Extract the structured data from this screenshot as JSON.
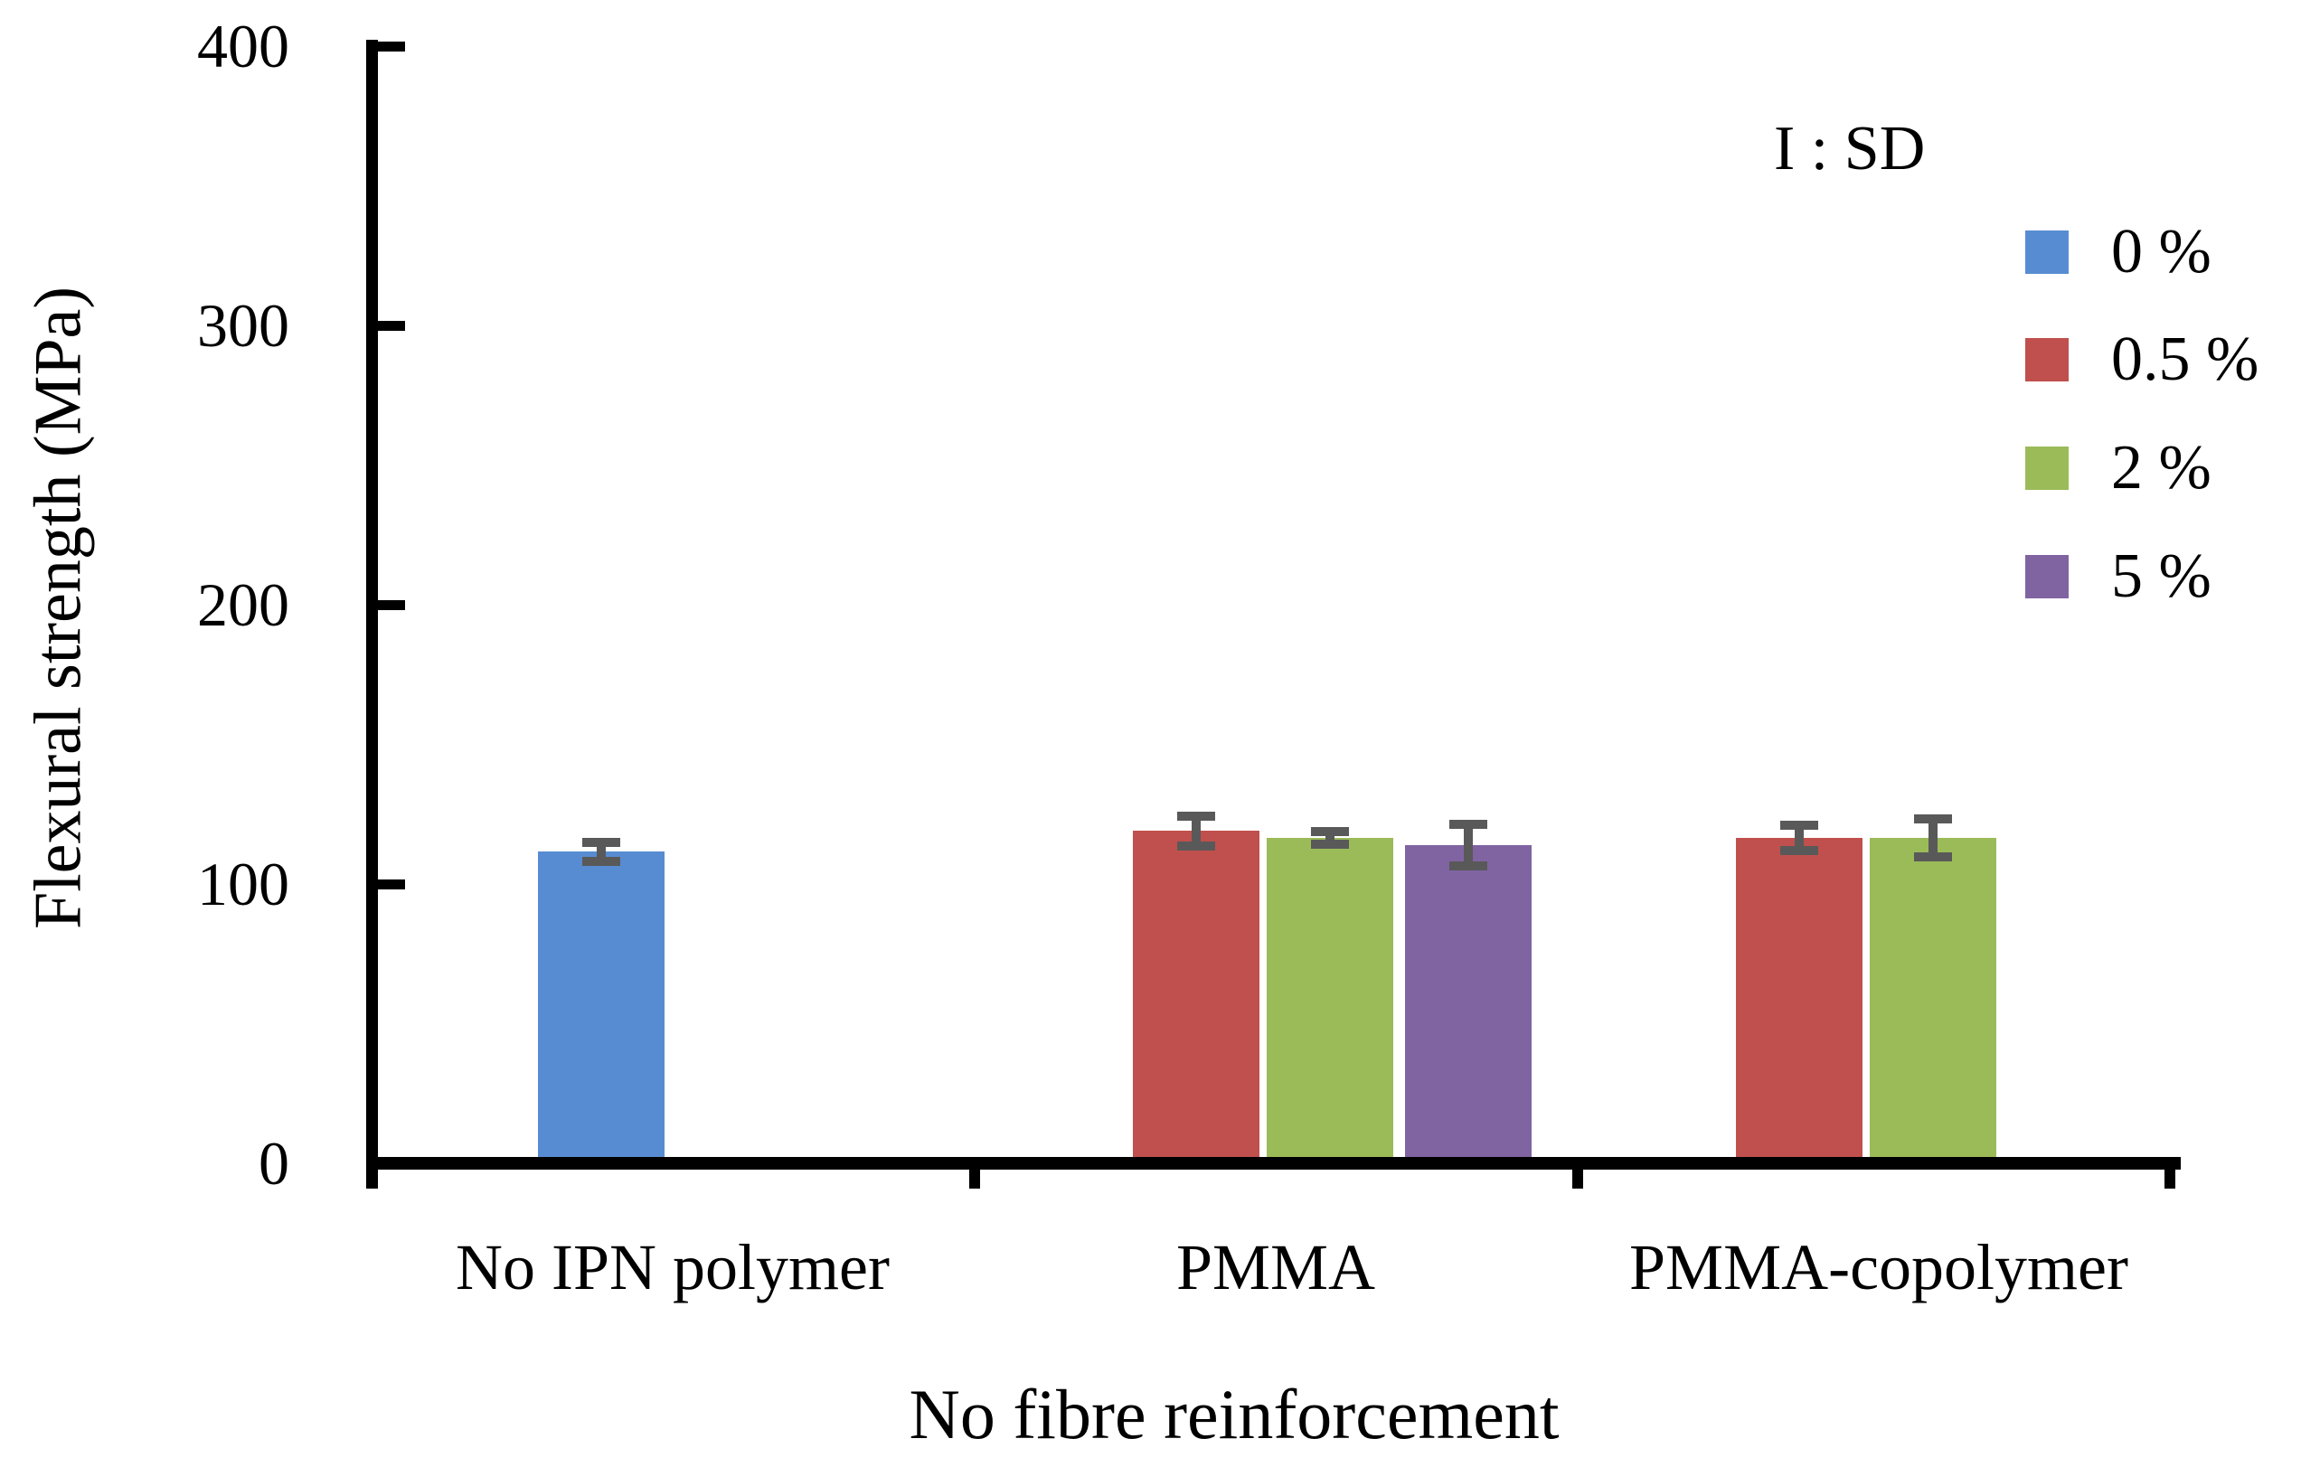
{
  "figure": {
    "background": "#ffffff",
    "text_color": "#000000",
    "error_bar_color": "#595959"
  },
  "chart_data": {
    "type": "bar",
    "title": "",
    "xlabel": "No fibre reinforcement",
    "ylabel": "Flexural strength (MPa)",
    "ylim": [
      0,
      400
    ],
    "yticks": [
      0,
      100,
      200,
      300,
      400
    ],
    "ytick_labels": [
      "0",
      "100",
      "200",
      "300",
      "400"
    ],
    "grid": false,
    "error_bars": "standard deviation",
    "categories": [
      "No IPN polymer",
      "PMMA",
      "PMMA-copolymer"
    ],
    "series": [
      {
        "name": "0 %",
        "color": "#588CD2",
        "values": [
          111.5,
          null,
          null
        ],
        "sd": [
          5,
          null,
          null
        ]
      },
      {
        "name": "0.5 %",
        "color": "#C0504D",
        "values": [
          null,
          119,
          116.5
        ],
        "sd": [
          null,
          7,
          6
        ]
      },
      {
        "name": "2 %",
        "color": "#9BBB59",
        "values": [
          null,
          116.5,
          116.5
        ],
        "sd": [
          null,
          4,
          8.5
        ]
      },
      {
        "name": "5 %",
        "color": "#8064A2",
        "values": [
          null,
          114,
          null
        ],
        "sd": [
          null,
          9,
          null
        ]
      }
    ],
    "legend": {
      "title": "I : SD",
      "position": "top-right",
      "entries": [
        "0 %",
        "0.5 %",
        "2 %",
        "5 %"
      ]
    }
  }
}
